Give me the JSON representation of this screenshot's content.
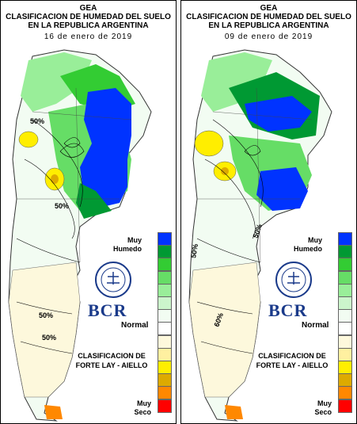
{
  "panels": [
    {
      "org": "GEA",
      "title_line1": "CLASIFICACION DE HUMEDAD DEL SUELO",
      "title_line2": "EN LA REPUBLICA ARGENTINA",
      "date": "16 de enero de 2019",
      "contour_labels": [
        "50%",
        "50%",
        "50%",
        "50%"
      ]
    },
    {
      "org": "GEA",
      "title_line1": "CLASIFICACION DE HUMEDAD DEL SUELO",
      "title_line2": "EN LA REPUBLICA ARGENTINA",
      "date": "09 de enero de 2019",
      "contour_labels": [
        "50%",
        "50%",
        "60%"
      ]
    }
  ],
  "legend": {
    "top_label_line1": "Muy",
    "top_label_line2": "Humedo",
    "middle_label": "Normal",
    "bottom_label_line1": "Muy",
    "bottom_label_line2": "Seco",
    "colors": [
      "#0033ff",
      "#009933",
      "#33cc33",
      "#66dd66",
      "#99ee99",
      "#ccf5cc",
      "#f2fcf2",
      "#ffffff",
      "#fdf8dc",
      "#fff0a0",
      "#ffee00",
      "#ddaa00",
      "#ff8800",
      "#ff0000"
    ]
  },
  "brand": {
    "logo_text": "BCR",
    "method_line1": "CLASIFICACION DE",
    "method_line2": "FORTE LAY - AIELLO"
  }
}
